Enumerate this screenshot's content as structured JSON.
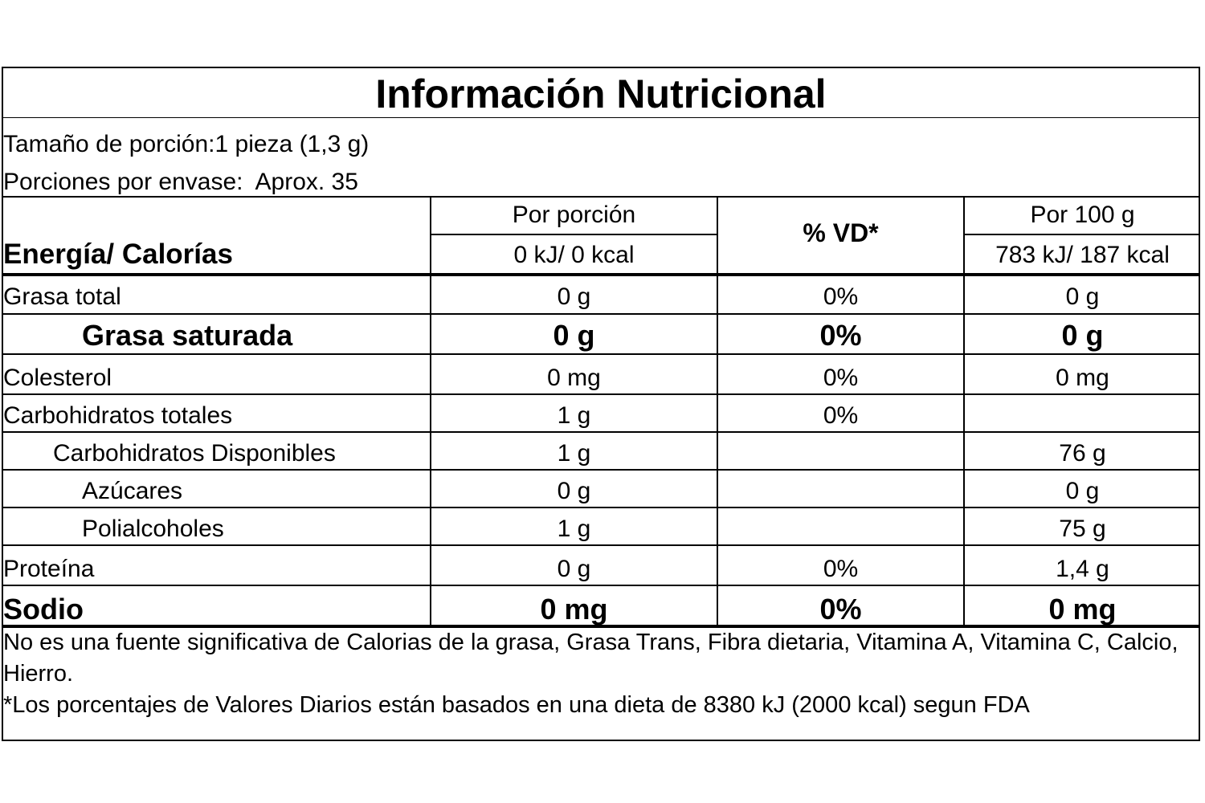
{
  "title": "Información Nutricional",
  "serving_size": "Tamaño de porción:1 pieza (1,3 g)",
  "servings_per_container": "Porciones por envase:  Aprox. 35",
  "header": {
    "per_serving": "Por porción",
    "dv": "% VD*",
    "per_100g": "Por 100 g",
    "energy_label": "Energía/ Calorías",
    "energy_per_serving": "0 kJ/ 0 kcal",
    "energy_per_100g": "783 kJ/ 187 kcal"
  },
  "rows": [
    {
      "name": "Grasa total",
      "per_serving": "0 g",
      "dv": "0%",
      "per_100g": "0 g"
    },
    {
      "name": "Grasa saturada",
      "per_serving": "0 g",
      "dv": "0%",
      "per_100g": "0 g"
    },
    {
      "name": "Colesterol",
      "per_serving": "0 mg",
      "dv": "0%",
      "per_100g": "0 mg"
    },
    {
      "name": "Carbohidratos totales",
      "per_serving": "1 g",
      "dv": "0%",
      "per_100g": ""
    },
    {
      "name": "Carbohidratos Disponibles",
      "per_serving": "1 g",
      "dv": "",
      "per_100g": "76 g"
    },
    {
      "name": "Azúcares",
      "per_serving": "0 g",
      "dv": "",
      "per_100g": "0 g"
    },
    {
      "name": "Polialcoholes",
      "per_serving": "1 g",
      "dv": "",
      "per_100g": "75 g"
    },
    {
      "name": "Proteína",
      "per_serving": "0 g",
      "dv": "0%",
      "per_100g": "1,4 g"
    },
    {
      "name": "Sodio",
      "per_serving": "0 mg",
      "dv": "0%",
      "per_100g": "0 mg"
    }
  ],
  "footnote_1": "No es una fuente significativa de Calorias de la grasa, Grasa Trans, Fibra dietaria, Vitamina A, Vitamina C, Calcio, Hierro.",
  "footnote_2": "*Los porcentajes de Valores Diarios están basados en una dieta de 8380 kJ (2000 kcal) segun FDA"
}
